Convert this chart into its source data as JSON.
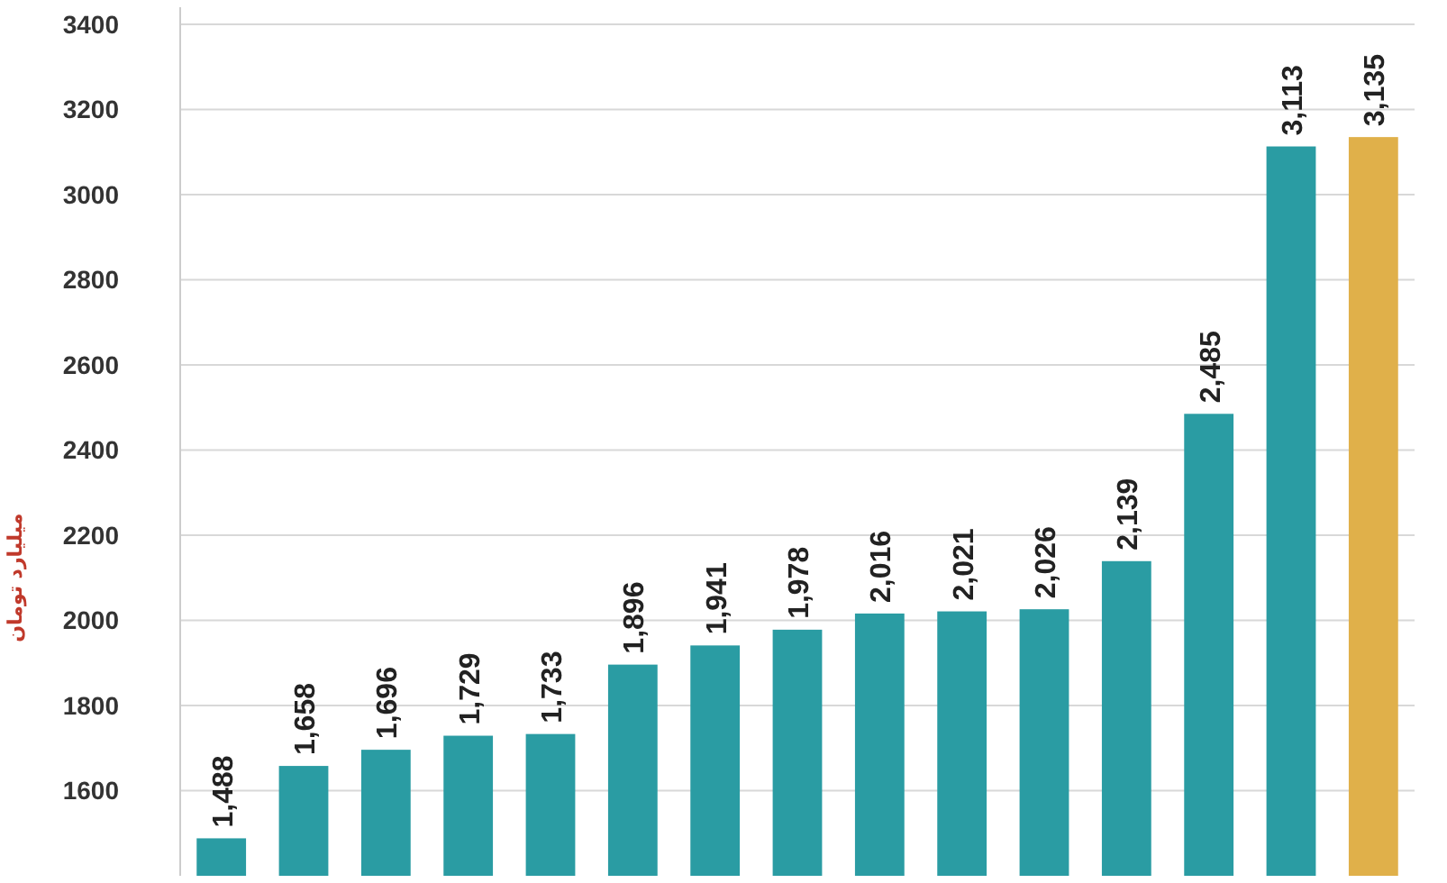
{
  "chart_data": {
    "type": "bar",
    "ylabel": "میلیارد تومان",
    "categories": [
      null,
      null,
      null,
      null,
      null,
      null,
      null,
      null,
      null,
      null,
      null,
      null,
      null,
      null,
      null
    ],
    "values": [
      1488,
      1658,
      1696,
      1729,
      1733,
      1896,
      1941,
      1978,
      2016,
      2021,
      2026,
      2139,
      2485,
      3113,
      3135
    ],
    "value_labels": [
      "1,488",
      "1,658",
      "1,696",
      "1,729",
      "1,733",
      "1,896",
      "1,941",
      "1,978",
      "2,016",
      "2,021",
      "2,026",
      "2,139",
      "2,485",
      "3,113",
      "3,135"
    ],
    "colors": [
      "#2a9ca3",
      "#2a9ca3",
      "#2a9ca3",
      "#2a9ca3",
      "#2a9ca3",
      "#2a9ca3",
      "#2a9ca3",
      "#2a9ca3",
      "#2a9ca3",
      "#2a9ca3",
      "#2a9ca3",
      "#2a9ca3",
      "#2a9ca3",
      "#2a9ca3",
      "#e0b04a"
    ],
    "ylim": [
      1400,
      3440
    ],
    "yticks": [
      1600,
      1800,
      2000,
      2200,
      2400,
      2600,
      2800,
      3000,
      3200,
      3400
    ],
    "grid": "y",
    "tick_labels": "y"
  }
}
